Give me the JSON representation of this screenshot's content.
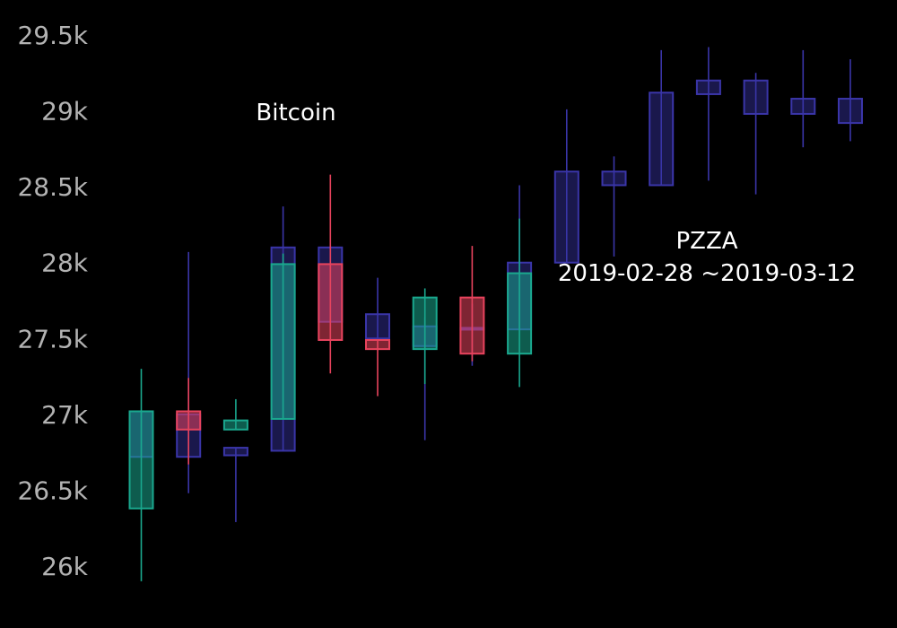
{
  "chart_data": {
    "type": "candlestick",
    "ylim": [
      25800,
      29700
    ],
    "y_ticks": [
      "26k",
      "26.5k",
      "27k",
      "27.5k",
      "28k",
      "28.5k",
      "29k",
      "29.5k"
    ],
    "y_tick_values": [
      26000,
      26500,
      27000,
      27500,
      28000,
      28500,
      29000,
      29500
    ],
    "series": [
      {
        "name": "Bitcoin",
        "up_color": "#1aa88e",
        "down_color": "#e8435d",
        "candles": [
          {
            "open": 26380,
            "close": 27020,
            "high": 27300,
            "low": 25900
          },
          {
            "open": 27020,
            "close": 26900,
            "high": 27240,
            "low": 26670
          },
          {
            "open": 26900,
            "close": 26960,
            "high": 27100,
            "low": 26900
          },
          {
            "open": 26970,
            "close": 27990,
            "high": 28060,
            "low": 26970
          },
          {
            "open": 27990,
            "close": 27490,
            "high": 28580,
            "low": 27270
          },
          {
            "open": 27490,
            "close": 27430,
            "high": 27490,
            "low": 27120
          },
          {
            "open": 27430,
            "close": 27770,
            "high": 27830,
            "low": 27200
          },
          {
            "open": 27770,
            "close": 27400,
            "high": 28110,
            "low": 27350
          },
          {
            "open": 27400,
            "close": 27930,
            "high": 28290,
            "low": 27180
          }
        ]
      },
      {
        "name": "PZZA",
        "period": "2019-02-28 ~2019-03-12",
        "color": "#3a35a8",
        "candles": [
          {
            "open": 27020,
            "close": 26720,
            "high": 27020,
            "low": 26720
          },
          {
            "open": 27000,
            "close": 26720,
            "high": 28070,
            "low": 26480
          },
          {
            "open": 26780,
            "close": 26730,
            "high": 26780,
            "low": 26290
          },
          {
            "open": 28100,
            "close": 26760,
            "high": 28370,
            "low": 26760
          },
          {
            "open": 28100,
            "close": 27610,
            "high": 28100,
            "low": 27610
          },
          {
            "open": 27660,
            "close": 27500,
            "high": 27900,
            "low": 27500
          },
          {
            "open": 27580,
            "close": 27450,
            "high": 27640,
            "low": 26830
          },
          {
            "open": 27570,
            "close": 27570,
            "high": 27730,
            "low": 27320
          },
          {
            "open": 28000,
            "close": 27560,
            "high": 28510,
            "low": 27560
          },
          {
            "open": 28600,
            "close": 28000,
            "high": 29010,
            "low": 28000
          },
          {
            "open": 28600,
            "close": 28510,
            "high": 28700,
            "low": 28040
          },
          {
            "open": 29120,
            "close": 28510,
            "high": 29400,
            "low": 28510
          },
          {
            "open": 29200,
            "close": 29110,
            "high": 29420,
            "low": 28540
          },
          {
            "open": 29200,
            "close": 28980,
            "high": 29250,
            "low": 28450
          },
          {
            "open": 29080,
            "close": 28980,
            "high": 29400,
            "low": 28760
          },
          {
            "open": 29080,
            "close": 28920,
            "high": 29340,
            "low": 28800
          }
        ]
      }
    ]
  }
}
